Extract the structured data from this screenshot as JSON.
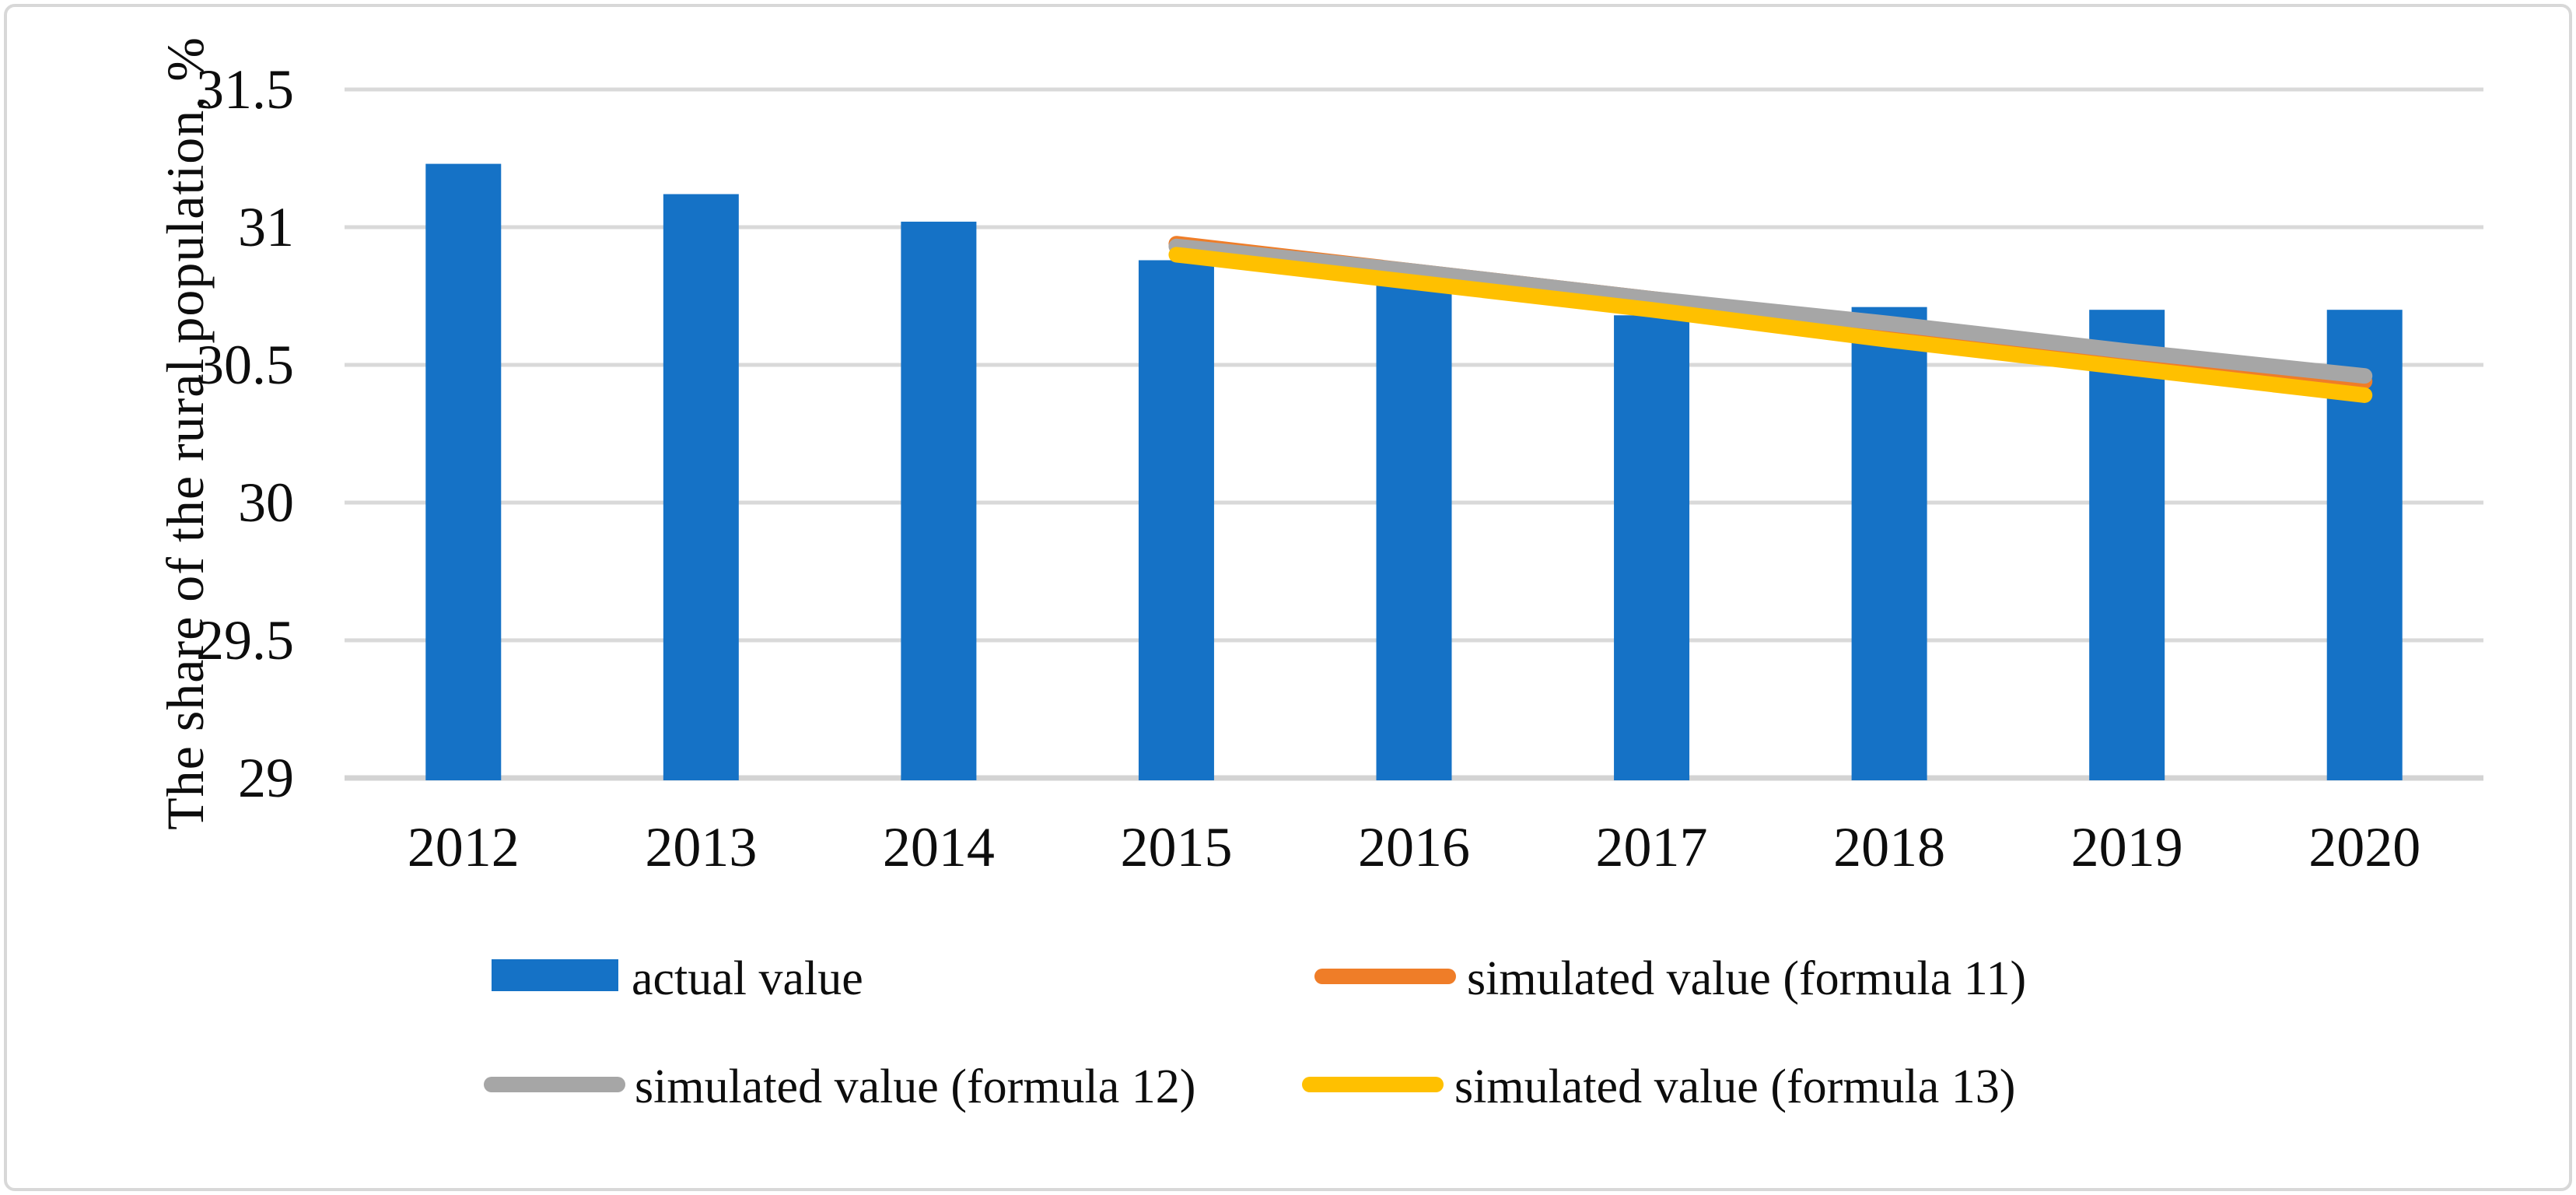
{
  "figure": {
    "background": "#FFFFFF",
    "border_color": "#D8D8D8"
  },
  "chart_data": {
    "type": "bar",
    "title": "",
    "ylabel": "The share of the rural population, %",
    "xlabel": "",
    "categories": [
      "2012",
      "2013",
      "2014",
      "2015",
      "2016",
      "2017",
      "2018",
      "2019",
      "2020"
    ],
    "series": [
      {
        "name": "actual value",
        "type": "bar",
        "color": "#1572C6",
        "values": [
          31.23,
          31.12,
          31.02,
          30.88,
          30.79,
          30.68,
          30.71,
          30.7,
          30.7
        ]
      },
      {
        "name": "simulated value (formula 11)",
        "type": "line",
        "color": "#EF7D28",
        "values": [
          null,
          null,
          null,
          30.94,
          30.84,
          30.74,
          30.64,
          30.54,
          30.44
        ]
      },
      {
        "name": "simulated value (formula 12)",
        "type": "line",
        "color": "#A6A6A6",
        "values": [
          null,
          null,
          null,
          30.93,
          30.84,
          30.74,
          30.65,
          30.55,
          30.46
        ]
      },
      {
        "name": "simulated value (formula 13)",
        "type": "line",
        "color": "#FFC000",
        "values": [
          null,
          null,
          null,
          30.9,
          30.8,
          30.7,
          30.59,
          30.49,
          30.39
        ]
      }
    ],
    "yticks": [
      {
        "label": "29",
        "value": 29.0
      },
      {
        "label": "29.5",
        "value": 29.5
      },
      {
        "label": "30",
        "value": 30.0
      },
      {
        "label": "30.5",
        "value": 30.5
      },
      {
        "label": "31",
        "value": 31.0
      },
      {
        "label": "31.5",
        "value": 31.5
      }
    ],
    "ylim": [
      29.0,
      31.5
    ],
    "grid": true,
    "gridline_color": "#D9D9D9",
    "axis_line_color": "#D3D3D3",
    "legend_position": "bottom"
  }
}
